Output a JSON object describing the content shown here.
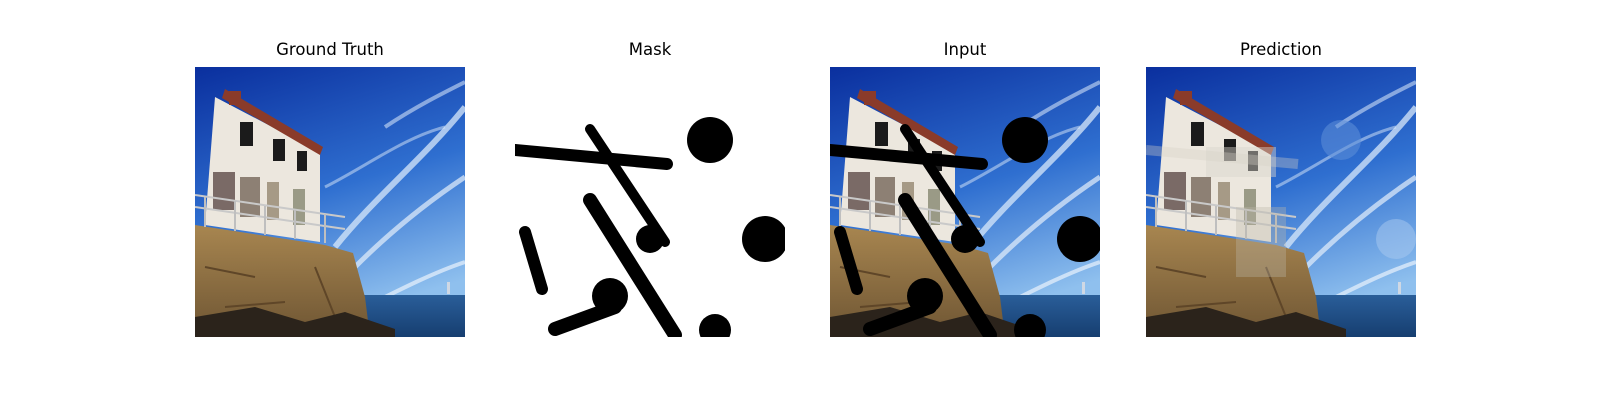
{
  "panels": [
    {
      "title": "Ground Truth",
      "image": "lighthouse-photo-original"
    },
    {
      "title": "Mask",
      "image": "binary-inpainting-mask"
    },
    {
      "title": "Input",
      "image": "lighthouse-photo-masked"
    },
    {
      "title": "Prediction",
      "image": "lighthouse-photo-inpainted"
    }
  ],
  "colors": {
    "sky_top": "#0d36a8",
    "sky_bottom": "#5a9de0",
    "building_wall": "#e9e4dc",
    "roof_trim": "#8a3b2a",
    "cliff": "#9c7a45",
    "sea": "#1e4f8a",
    "mask": "#000000"
  }
}
